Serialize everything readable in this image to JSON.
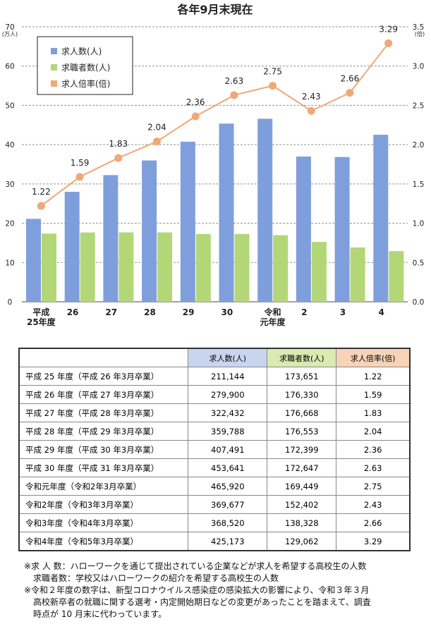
{
  "chart_data": {
    "type": "bar",
    "title": "各年9月末現在",
    "categories": [
      "平成\n25年度",
      "26",
      "27",
      "28",
      "29",
      "30",
      "令和\n元年度",
      "2",
      "3",
      "4"
    ],
    "left_axis": {
      "unit": "(万人)",
      "range": [
        0,
        70
      ],
      "ticks": [
        0,
        10,
        20,
        30,
        40,
        50,
        60,
        70
      ]
    },
    "right_axis": {
      "unit": "(倍)",
      "range": [
        0,
        3.5
      ],
      "ticks": [
        "0.0",
        "0.5",
        "1.0",
        "1.5",
        "2.0",
        "2.5",
        "3.0",
        "3.5"
      ]
    },
    "grid": true,
    "legend_position": "top-left",
    "series": [
      {
        "name": "求人数(人)",
        "type": "bar",
        "axis": "left",
        "color": "#7f9fdc",
        "values": [
          21.1144,
          27.99,
          32.2432,
          35.9788,
          40.7491,
          45.3641,
          46.592,
          36.9677,
          36.852,
          42.5173
        ]
      },
      {
        "name": "求職者数(人)",
        "type": "bar",
        "axis": "left",
        "color": "#b3d776",
        "values": [
          17.3651,
          17.633,
          17.6668,
          17.6553,
          17.2399,
          17.2647,
          16.9449,
          15.2402,
          13.8328,
          12.9062
        ]
      },
      {
        "name": "求人倍率(倍)",
        "type": "line",
        "axis": "right",
        "color": "#f0a878",
        "values": [
          1.22,
          1.59,
          1.83,
          2.04,
          2.36,
          2.63,
          2.75,
          2.43,
          2.66,
          3.29
        ],
        "labels": [
          "1.22",
          "1.59",
          "1.83",
          "2.04",
          "2.36",
          "2.63",
          "2.75",
          "2.43",
          "2.66",
          "3.29"
        ]
      }
    ]
  },
  "table": {
    "headers": [
      "",
      "求人数(人)",
      "求職者数(人)",
      "求人倍率(倍)"
    ],
    "rows": [
      [
        "平成 25 年度（平成 26 年3月卒業）",
        "211,144",
        "173,651",
        "1.22"
      ],
      [
        "平成 26 年度（平成 27 年3月卒業）",
        "279,900",
        "176,330",
        "1.59"
      ],
      [
        "平成 27 年度（平成 28 年3月卒業）",
        "322,432",
        "176,668",
        "1.83"
      ],
      [
        "平成 28 年度（平成 29 年3月卒業）",
        "359,788",
        "176,553",
        "2.04"
      ],
      [
        "平成 29 年度（平成 30 年3月卒業）",
        "407,491",
        "172,399",
        "2.36"
      ],
      [
        "平成 30 年度（平成 31 年3月卒業）",
        "453,641",
        "172,647",
        "2.63"
      ],
      [
        "令和元年度（令和2年3月卒業）",
        "465,920",
        "169,449",
        "2.75"
      ],
      [
        "令和2年度（令和3年3月卒業）",
        "369,677",
        "152,402",
        "2.43"
      ],
      [
        "令和3年度（令和4年3月卒業）",
        "368,520",
        "138,328",
        "2.66"
      ],
      [
        "令和4年度（令和5年3月卒業）",
        "425,173",
        "129,062",
        "3.29"
      ]
    ]
  },
  "notes": [
    "※求 人 数：ハローワークを通じて提出されている企業などが求人を希望する高校生の人数",
    "求職者数：学校又はハローワークの紹介を希望する高校生の人数",
    "※令和２年度の数字は、新型コロナウイルス感染症の感染拡大の影響により、令和３年３月",
    "高校新卒者の就職に関する選考・内定開始期日などの変更があったことを踏まえて、調査",
    "時点が 10 月末に代わっています。"
  ]
}
